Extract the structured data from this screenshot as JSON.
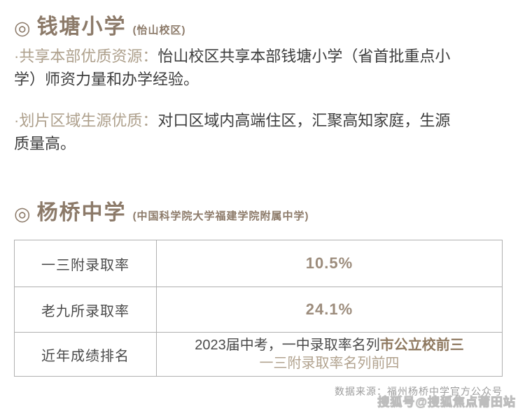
{
  "colors": {
    "header_brown": "#8c7a69",
    "lead_tan": "#aea08c",
    "body_text": "#3d3d3d",
    "label_gray": "#4a4a4a",
    "value_brown": "#9c8c7c",
    "highlight_brown": "#8f7960",
    "line2_tan": "#b2a38f",
    "border_gray": "#b0b0b0",
    "source_gray": "#9c9c9c",
    "watermark_gray": "#bdbdbd"
  },
  "school1": {
    "marker": "◎",
    "name": "钱塘小学",
    "note": "(怡山校区)",
    "points": [
      {
        "lead": "·共享本部优质资源：",
        "line1": "怡山校区共享本部钱塘小学（省首批重点小",
        "line2": "学）师资力量和办学经验。"
      },
      {
        "lead": "·划片区域生源优质：",
        "line1": "对口区域内高端住区，汇聚高知家庭，生源",
        "line2": "质量高。"
      }
    ]
  },
  "school2": {
    "marker": "◎",
    "name": "杨桥中学",
    "note": "(中国科学院大学福建学院附属中学)"
  },
  "table": {
    "rows": [
      {
        "label": "一三附录取率",
        "value": "10.5%"
      },
      {
        "label": "老九所录取率",
        "value": "24.1%"
      },
      {
        "label": "近年成绩排名",
        "value_prefix": "2023届中考，一中录取率名列",
        "value_highlight": "市公立校前三",
        "value_line2": "一三附录取率名列前四"
      }
    ]
  },
  "footer": {
    "source": "数据来源：福州杨桥中学官方公众号",
    "watermark": "搜狐号@搜狐焦点莆田站"
  }
}
